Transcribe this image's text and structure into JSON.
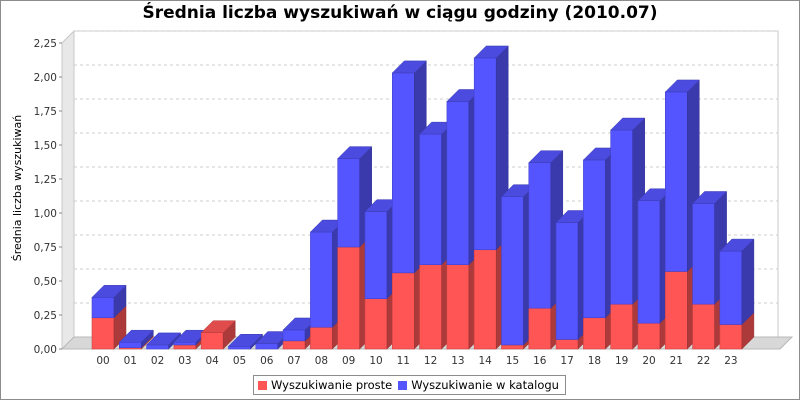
{
  "chart_data": {
    "type": "bar",
    "stacked": true,
    "three_d": true,
    "title": "Średnia liczba wyszukiwań w ciągu godziny (2010.07)",
    "xlabel": "",
    "ylabel": "Średnia liczba wyszukiwań",
    "ylim": [
      0,
      2.25
    ],
    "yticks": [
      "0,00",
      "0,25",
      "0,50",
      "0,75",
      "1,00",
      "1,25",
      "1,50",
      "1,75",
      "2,00",
      "2,25"
    ],
    "grid": true,
    "legend_position": "bottom",
    "categories": [
      "00",
      "01",
      "02",
      "03",
      "04",
      "05",
      "06",
      "07",
      "08",
      "09",
      "10",
      "11",
      "12",
      "13",
      "14",
      "15",
      "16",
      "17",
      "18",
      "19",
      "20",
      "21",
      "22",
      "23"
    ],
    "series": [
      {
        "name": "Wyszukiwanie proste",
        "color": "#ff5555",
        "values": [
          0.23,
          0.01,
          0.0,
          0.03,
          0.12,
          0.0,
          0.0,
          0.06,
          0.16,
          0.75,
          0.37,
          0.56,
          0.62,
          0.62,
          0.73,
          0.03,
          0.3,
          0.07,
          0.23,
          0.33,
          0.19,
          0.57,
          0.33,
          0.18
        ]
      },
      {
        "name": "Wyszukiwanie w katalogu",
        "color": "#5555ff",
        "values": [
          0.15,
          0.04,
          0.03,
          0.02,
          0.0,
          0.02,
          0.04,
          0.08,
          0.7,
          0.65,
          0.64,
          1.47,
          0.96,
          1.2,
          1.41,
          1.09,
          1.07,
          0.86,
          1.16,
          1.28,
          0.9,
          1.32,
          0.74,
          0.54
        ]
      }
    ]
  }
}
